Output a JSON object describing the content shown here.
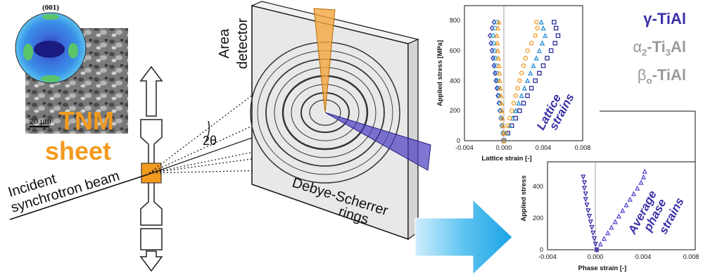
{
  "legend": {
    "gamma": "γ-TiAl",
    "alpha2_sym": "α",
    "alpha2_sub": "2",
    "alpha2_rest": "-Ti",
    "alpha2_sub2": "3",
    "alpha2_end": "Al",
    "beta_sym": "β",
    "beta_sub": "o",
    "beta_rest": "-TiAl",
    "gamma_color": "#3a30a8",
    "other_color": "#9a9a9a"
  },
  "sample": {
    "pole_figure_label": "(001)",
    "scale_bar": "20 µm",
    "title_line1": "TNM",
    "title_line2": "sheet",
    "title_color": "#f29a1f"
  },
  "setup": {
    "beam_line1": "Incident",
    "beam_line2": "synchrotron beam",
    "angle": "2θ",
    "detector_line1": "Area",
    "detector_line2": "detector",
    "rings_line1": "Debye-Scherrer",
    "rings_line2": "rings"
  },
  "chart_data": [
    {
      "type": "scatter",
      "title": "",
      "inner_label_line1": "Lattice",
      "inner_label_line2": "strains",
      "xlabel": "Lattice strain [-]",
      "ylabel": "Applied stress [MPa]",
      "xlim": [
        -0.004,
        0.008
      ],
      "ylim": [
        0,
        900
      ],
      "xticks": [
        "-0.004",
        "0.000",
        "0.004",
        "0.008"
      ],
      "yticks": [
        "0",
        "200",
        "400",
        "600",
        "800"
      ],
      "series": [
        {
          "color": "#2b2f9a",
          "marker": "square",
          "x": [
            0.0,
            0.0004,
            0.0008,
            0.0012,
            0.0016,
            0.002,
            0.0024,
            0.0028,
            0.0032,
            0.0036,
            0.004,
            0.0044,
            0.0048,
            0.0052,
            0.0055,
            0.0053,
            0.0051
          ],
          "y": [
            0,
            50,
            100,
            150,
            200,
            250,
            300,
            350,
            400,
            450,
            500,
            550,
            600,
            650,
            700,
            750,
            790
          ]
        },
        {
          "color": "#2d8fd6",
          "marker": "triangle",
          "x": [
            0.0,
            0.0003,
            0.0006,
            0.0009,
            0.0012,
            0.0015,
            0.0018,
            0.0021,
            0.0024,
            0.0027,
            0.003,
            0.0033,
            0.0036,
            0.0039,
            0.0042,
            0.004,
            0.0038
          ],
          "y": [
            0,
            50,
            100,
            150,
            200,
            250,
            300,
            350,
            400,
            450,
            500,
            550,
            600,
            650,
            700,
            750,
            790
          ]
        },
        {
          "color": "#f29a1f",
          "marker": "circle",
          "x": [
            0.0,
            0.0002,
            0.0004,
            0.0006,
            0.0008,
            0.001,
            0.0012,
            0.0014,
            0.0016,
            0.0018,
            0.002,
            0.0022,
            0.0024,
            0.0028,
            0.0032,
            0.0034,
            0.0033
          ],
          "y": [
            0,
            50,
            100,
            150,
            200,
            250,
            300,
            350,
            400,
            450,
            500,
            550,
            600,
            650,
            700,
            750,
            790
          ]
        },
        {
          "color": "#3a30a8",
          "marker": "diamond",
          "x": [
            0.0,
            -0.0001,
            -0.0002,
            -0.0003,
            -0.0004,
            -0.0005,
            -0.0006,
            -0.0007,
            -0.0008,
            -0.0009,
            -0.001,
            -0.0011,
            -0.0012,
            -0.0013,
            -0.0014,
            -0.0012,
            -0.001
          ],
          "y": [
            0,
            50,
            100,
            150,
            200,
            250,
            300,
            350,
            400,
            450,
            500,
            550,
            600,
            650,
            700,
            750,
            790
          ]
        },
        {
          "color": "#1e9ad6",
          "marker": "circle",
          "x": [
            0.0,
            -8e-05,
            -0.00016,
            -0.00024,
            -0.00032,
            -0.0004,
            -0.00048,
            -0.00056,
            -0.00064,
            -0.00072,
            -0.0008,
            -0.00088,
            -0.00096,
            -0.00104,
            -0.0011,
            -0.0009,
            -0.0007
          ],
          "y": [
            0,
            50,
            100,
            150,
            200,
            250,
            300,
            350,
            400,
            450,
            500,
            550,
            600,
            650,
            700,
            750,
            790
          ]
        },
        {
          "color": "#f29a1f",
          "marker": "triangle",
          "x": [
            0.0,
            -5e-05,
            -0.0001,
            -0.00015,
            -0.0002,
            -0.00025,
            -0.0003,
            -0.00035,
            -0.0004,
            -0.00045,
            -0.0005,
            -0.00055,
            -0.0006,
            -0.00065,
            -0.0007,
            -0.0006,
            -0.0005
          ],
          "y": [
            0,
            50,
            100,
            150,
            200,
            250,
            300,
            350,
            400,
            450,
            500,
            550,
            600,
            650,
            700,
            750,
            790
          ]
        }
      ]
    },
    {
      "type": "scatter",
      "title": "",
      "inner_label_line1": "Average",
      "inner_label_line2": "phase",
      "inner_label_line3": "strains",
      "xlabel": "Phase strain [-]",
      "ylabel": "Applied stress",
      "xlim": [
        -0.004,
        0.008
      ],
      "ylim": [
        0,
        550
      ],
      "xticks": [
        "-0.004",
        "0.000",
        "0.004",
        "0.008"
      ],
      "yticks": [
        "0",
        "200",
        "400"
      ],
      "series": [
        {
          "color": "#5a4fd0",
          "marker": "triangle",
          "x": [
            0.0,
            0.0003,
            0.0006,
            0.0009,
            0.0012,
            0.0015,
            0.0018,
            0.0021,
            0.0024,
            0.0027,
            0.003,
            0.0033,
            0.0036,
            0.0038,
            0.0039
          ],
          "y": [
            0,
            35,
            70,
            105,
            140,
            175,
            210,
            245,
            280,
            315,
            350,
            385,
            420,
            455,
            490
          ]
        },
        {
          "color": "#3a30a8",
          "marker": "triangle-down",
          "x": [
            0.0,
            -0.0001,
            -0.0002,
            -0.0003,
            -0.0004,
            -0.0005,
            -0.0006,
            -0.0007,
            -0.0008,
            -0.0009,
            -0.0009,
            -0.001,
            -0.001,
            -0.0011
          ],
          "y": [
            0,
            35,
            70,
            105,
            140,
            175,
            210,
            245,
            280,
            315,
            350,
            385,
            420,
            455
          ]
        }
      ]
    }
  ]
}
